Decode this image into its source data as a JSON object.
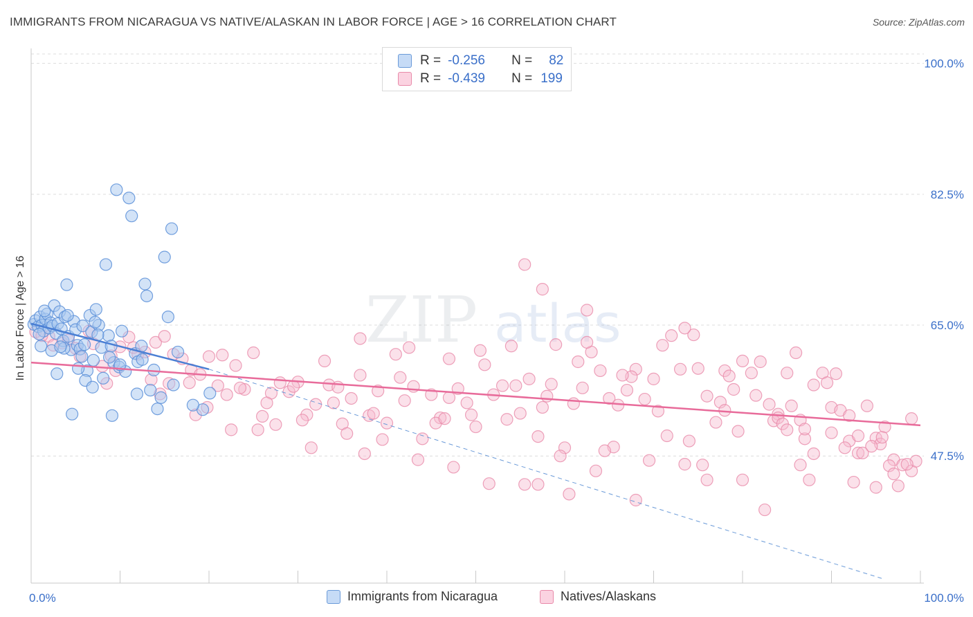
{
  "header": {
    "title": "IMMIGRANTS FROM NICARAGUA VS NATIVE/ALASKAN IN LABOR FORCE | AGE > 16 CORRELATION CHART",
    "source": "Source: ZipAtlas.com"
  },
  "watermark": {
    "part1": "ZIP",
    "part2": "atlas"
  },
  "legend": {
    "rows": [
      {
        "r_label": "R =",
        "r_value": "-0.256",
        "n_label": "N =",
        "n_value": "82",
        "color": "#a8c8f0",
        "stroke": "#6a9ad8"
      },
      {
        "r_label": "R =",
        "r_value": "-0.439",
        "n_label": "N =",
        "n_value": "199",
        "color": "#f7bcd0",
        "stroke": "#e88aa9"
      }
    ]
  },
  "bottom_legend": {
    "series1": "Immigrants from Nicaragua",
    "series2": "Natives/Alaskans"
  },
  "chart_data": {
    "type": "scatter",
    "title": "IMMIGRANTS FROM NICARAGUA VS NATIVE/ALASKAN IN LABOR FORCE | AGE > 16 CORRELATION CHART",
    "xlabel": "",
    "ylabel": "In Labor Force | Age > 16",
    "xlim": [
      0,
      100
    ],
    "ylim": [
      30.5,
      102
    ],
    "x_ticks": [
      "0.0%",
      "100.0%"
    ],
    "y_ticks": [
      {
        "value": 100,
        "label": "100.0%"
      },
      {
        "value": 82.5,
        "label": "82.5%"
      },
      {
        "value": 65,
        "label": "65.0%"
      },
      {
        "value": 47.5,
        "label": "47.5%"
      }
    ],
    "grid": true,
    "legend_position": "top-center",
    "colors": {
      "blue": "#4a7fd4",
      "blue_fill": "#a8c8f0",
      "pink": "#e86b9a",
      "pink_fill": "#f7bcd0",
      "tick_label": "#3a6fc9"
    },
    "series": [
      {
        "name": "Immigrants from Nicaragua",
        "color": "#4a7fd4",
        "trend": {
          "x": [
            0,
            20
          ],
          "y": [
            65.2,
            59.1
          ]
        },
        "trend_extension": {
          "x": [
            20,
            96
          ],
          "y": [
            59.1,
            31
          ]
        },
        "points": [
          [
            0.3,
            65.1
          ],
          [
            0.5,
            65.6
          ],
          [
            0.8,
            64.8
          ],
          [
            1.0,
            66.1
          ],
          [
            1.2,
            65.0
          ],
          [
            1.4,
            64.2
          ],
          [
            1.6,
            65.8
          ],
          [
            1.8,
            66.5
          ],
          [
            2.0,
            64.6
          ],
          [
            2.2,
            65.3
          ],
          [
            2.4,
            64.9
          ],
          [
            2.6,
            67.6
          ],
          [
            2.8,
            63.9
          ],
          [
            3.0,
            65.2
          ],
          [
            3.2,
            66.8
          ],
          [
            3.4,
            64.5
          ],
          [
            3.6,
            62.9
          ],
          [
            3.8,
            66.1
          ],
          [
            4.0,
            70.4
          ],
          [
            4.2,
            63.5
          ],
          [
            4.5,
            61.7
          ],
          [
            4.8,
            65.5
          ],
          [
            5.0,
            64.4
          ],
          [
            5.2,
            62.3
          ],
          [
            5.5,
            61.8
          ],
          [
            5.8,
            64.9
          ],
          [
            6.0,
            62.4
          ],
          [
            6.3,
            58.9
          ],
          [
            6.6,
            66.3
          ],
          [
            6.8,
            64.1
          ],
          [
            7.0,
            60.3
          ],
          [
            7.3,
            67.1
          ],
          [
            7.6,
            65.0
          ],
          [
            7.9,
            62.0
          ],
          [
            8.1,
            57.9
          ],
          [
            8.4,
            73.1
          ],
          [
            8.7,
            63.6
          ],
          [
            9.0,
            62.2
          ],
          [
            9.3,
            60.0
          ],
          [
            9.6,
            83.1
          ],
          [
            9.9,
            59.4
          ],
          [
            10.2,
            64.2
          ],
          [
            10.6,
            58.8
          ],
          [
            11.0,
            82.0
          ],
          [
            11.3,
            79.6
          ],
          [
            11.7,
            61.2
          ],
          [
            12.0,
            60.1
          ],
          [
            12.4,
            62.2
          ],
          [
            12.8,
            70.5
          ],
          [
            13.0,
            68.9
          ],
          [
            13.4,
            56.3
          ],
          [
            13.8,
            59.0
          ],
          [
            14.2,
            53.8
          ],
          [
            14.6,
            55.3
          ],
          [
            15.0,
            74.1
          ],
          [
            15.4,
            66.1
          ],
          [
            15.8,
            77.9
          ],
          [
            16.5,
            61.4
          ],
          [
            1.1,
            62.2
          ],
          [
            2.9,
            58.5
          ],
          [
            3.7,
            61.9
          ],
          [
            5.3,
            59.2
          ],
          [
            6.1,
            57.6
          ],
          [
            7.5,
            63.7
          ],
          [
            8.8,
            60.7
          ],
          [
            10.0,
            59.7
          ],
          [
            1.5,
            66.9
          ],
          [
            2.3,
            61.6
          ],
          [
            4.1,
            66.3
          ],
          [
            11.9,
            55.8
          ],
          [
            12.5,
            60.4
          ],
          [
            16.0,
            57.0
          ],
          [
            19.3,
            53.7
          ],
          [
            18.2,
            54.3
          ],
          [
            20.1,
            55.9
          ],
          [
            6.9,
            56.7
          ],
          [
            4.6,
            53.1
          ],
          [
            9.1,
            52.9
          ],
          [
            0.9,
            63.8
          ],
          [
            3.3,
            62.1
          ],
          [
            5.7,
            60.8
          ],
          [
            7.2,
            65.4
          ]
        ]
      },
      {
        "name": "Natives/Alaskans",
        "color": "#e86b9a",
        "trend": {
          "x": [
            0,
            100
          ],
          "y": [
            60.0,
            51.6
          ]
        },
        "points": [
          [
            0.5,
            64.1
          ],
          [
            2.0,
            63.5
          ],
          [
            3.5,
            62.6
          ],
          [
            5.0,
            61.9
          ],
          [
            6.5,
            64.2
          ],
          [
            8.0,
            59.5
          ],
          [
            9.0,
            60.9
          ],
          [
            10.0,
            62.1
          ],
          [
            11.0,
            63.4
          ],
          [
            12.0,
            61.1
          ],
          [
            13.5,
            57.7
          ],
          [
            14.0,
            62.7
          ],
          [
            15.0,
            63.5
          ],
          [
            16.0,
            61.1
          ],
          [
            17.0,
            60.5
          ],
          [
            18.0,
            59.0
          ],
          [
            19.0,
            58.4
          ],
          [
            20.0,
            60.8
          ],
          [
            21.0,
            56.9
          ],
          [
            22.0,
            55.7
          ],
          [
            23.0,
            59.6
          ],
          [
            24.0,
            56.4
          ],
          [
            25.0,
            61.3
          ],
          [
            26.0,
            52.8
          ],
          [
            27.0,
            55.9
          ],
          [
            28.0,
            57.3
          ],
          [
            29.0,
            56.1
          ],
          [
            30.0,
            57.4
          ],
          [
            31.0,
            53.0
          ],
          [
            32.0,
            54.4
          ],
          [
            33.0,
            60.2
          ],
          [
            34.0,
            54.6
          ],
          [
            35.0,
            51.8
          ],
          [
            36.0,
            55.2
          ],
          [
            37.0,
            58.3
          ],
          [
            38.0,
            52.9
          ],
          [
            39.0,
            56.2
          ],
          [
            40.0,
            51.9
          ],
          [
            41.0,
            61.1
          ],
          [
            42.0,
            54.9
          ],
          [
            43.0,
            56.8
          ],
          [
            44.0,
            49.8
          ],
          [
            45.0,
            55.7
          ],
          [
            46.0,
            52.6
          ],
          [
            47.0,
            55.3
          ],
          [
            48.0,
            56.5
          ],
          [
            49.0,
            54.6
          ],
          [
            50.0,
            51.4
          ],
          [
            51.0,
            59.7
          ],
          [
            52.0,
            55.7
          ],
          [
            53.0,
            56.9
          ],
          [
            54.0,
            62.2
          ],
          [
            55.0,
            53.2
          ],
          [
            56.0,
            57.8
          ],
          [
            57.0,
            50.1
          ],
          [
            58.0,
            55.5
          ],
          [
            59.0,
            62.4
          ],
          [
            60.0,
            48.6
          ],
          [
            61.0,
            54.5
          ],
          [
            62.0,
            56.6
          ],
          [
            63.0,
            61.4
          ],
          [
            64.0,
            58.9
          ],
          [
            65.0,
            55.2
          ],
          [
            66.0,
            54.3
          ],
          [
            67.0,
            56.3
          ],
          [
            68.0,
            59.1
          ],
          [
            69.0,
            55.1
          ],
          [
            70.0,
            57.8
          ],
          [
            71.0,
            62.3
          ],
          [
            72.0,
            63.6
          ],
          [
            73.0,
            59.1
          ],
          [
            74.0,
            49.5
          ],
          [
            75.0,
            59.2
          ],
          [
            76.0,
            55.5
          ],
          [
            77.0,
            52.0
          ],
          [
            78.0,
            58.9
          ],
          [
            79.0,
            56.4
          ],
          [
            80.0,
            44.3
          ],
          [
            81.0,
            58.6
          ],
          [
            82.0,
            60.1
          ],
          [
            83.0,
            54.4
          ],
          [
            84.0,
            53.1
          ],
          [
            85.0,
            58.6
          ],
          [
            86.0,
            61.3
          ],
          [
            87.0,
            49.8
          ],
          [
            88.0,
            57.0
          ],
          [
            89.0,
            58.6
          ],
          [
            90.0,
            54.0
          ],
          [
            91.0,
            53.6
          ],
          [
            92.0,
            49.5
          ],
          [
            93.0,
            47.9
          ],
          [
            94.0,
            54.2
          ],
          [
            95.0,
            49.9
          ],
          [
            96.0,
            51.4
          ],
          [
            97.0,
            47.0
          ],
          [
            98.0,
            46.3
          ],
          [
            99.0,
            45.5
          ],
          [
            1.2,
            63.6
          ],
          [
            4.2,
            63.0
          ],
          [
            7.0,
            62.5
          ],
          [
            9.5,
            58.9
          ],
          [
            12.8,
            61.4
          ],
          [
            15.5,
            57.2
          ],
          [
            17.8,
            57.3
          ],
          [
            19.8,
            54.0
          ],
          [
            21.5,
            61.0
          ],
          [
            23.5,
            56.6
          ],
          [
            25.5,
            51.0
          ],
          [
            27.5,
            51.7
          ],
          [
            29.5,
            56.8
          ],
          [
            31.5,
            48.6
          ],
          [
            33.5,
            57.0
          ],
          [
            35.5,
            50.5
          ],
          [
            37.5,
            47.8
          ],
          [
            39.5,
            49.7
          ],
          [
            41.5,
            58.0
          ],
          [
            43.5,
            47.0
          ],
          [
            45.5,
            51.9
          ],
          [
            47.5,
            46.0
          ],
          [
            49.5,
            53.0
          ],
          [
            51.5,
            43.8
          ],
          [
            53.5,
            52.4
          ],
          [
            55.5,
            43.7
          ],
          [
            57.5,
            54.0
          ],
          [
            59.5,
            47.5
          ],
          [
            61.5,
            60.1
          ],
          [
            63.5,
            45.5
          ],
          [
            65.5,
            48.7
          ],
          [
            67.5,
            58.1
          ],
          [
            69.5,
            46.9
          ],
          [
            71.5,
            50.2
          ],
          [
            73.5,
            46.4
          ],
          [
            75.5,
            46.3
          ],
          [
            77.5,
            54.7
          ],
          [
            79.5,
            50.8
          ],
          [
            81.5,
            55.6
          ],
          [
            83.5,
            52.2
          ],
          [
            85.5,
            54.2
          ],
          [
            87.5,
            44.3
          ],
          [
            89.5,
            57.3
          ],
          [
            91.5,
            48.6
          ],
          [
            93.5,
            47.9
          ],
          [
            95.5,
            49.1
          ],
          [
            97.5,
            43.5
          ],
          [
            99.5,
            46.8
          ],
          [
            2.5,
            62.3
          ],
          [
            5.5,
            60.8
          ],
          [
            8.5,
            57.2
          ],
          [
            11.5,
            62.0
          ],
          [
            14.5,
            55.8
          ],
          [
            18.5,
            53.0
          ],
          [
            22.5,
            51.0
          ],
          [
            26.5,
            54.6
          ],
          [
            30.5,
            52.3
          ],
          [
            34.5,
            56.7
          ],
          [
            38.5,
            53.2
          ],
          [
            42.5,
            62.0
          ],
          [
            46.5,
            52.5
          ],
          [
            50.5,
            61.6
          ],
          [
            54.5,
            56.9
          ],
          [
            58.5,
            57.1
          ],
          [
            62.5,
            62.7
          ],
          [
            66.5,
            58.3
          ],
          [
            70.5,
            53.5
          ],
          [
            74.5,
            63.7
          ],
          [
            78.5,
            58.2
          ],
          [
            82.5,
            40.3
          ],
          [
            86.5,
            46.3
          ],
          [
            90.5,
            58.5
          ],
          [
            94.5,
            48.8
          ],
          [
            96.5,
            46.2
          ],
          [
            98.5,
            46.4
          ],
          [
            37.0,
            63.2
          ],
          [
            47.0,
            60.5
          ],
          [
            57.0,
            43.7
          ],
          [
            60.5,
            42.4
          ],
          [
            64.5,
            48.2
          ],
          [
            68.0,
            41.6
          ],
          [
            76.0,
            44.3
          ],
          [
            84.0,
            52.6
          ],
          [
            88.0,
            47.8
          ],
          [
            92.5,
            44.0
          ],
          [
            95.0,
            43.3
          ],
          [
            97.0,
            45.1
          ],
          [
            55.5,
            73.1
          ],
          [
            57.5,
            69.8
          ],
          [
            62.5,
            67.0
          ],
          [
            73.5,
            64.6
          ],
          [
            84.5,
            51.8
          ],
          [
            86.5,
            52.3
          ],
          [
            92.0,
            52.9
          ],
          [
            99.0,
            52.5
          ],
          [
            80.0,
            60.2
          ],
          [
            85.0,
            51.0
          ],
          [
            93.0,
            50.2
          ],
          [
            95.7,
            50.0
          ],
          [
            87.0,
            51.1
          ],
          [
            90.0,
            50.6
          ],
          [
            78.0,
            53.6
          ]
        ]
      }
    ]
  }
}
